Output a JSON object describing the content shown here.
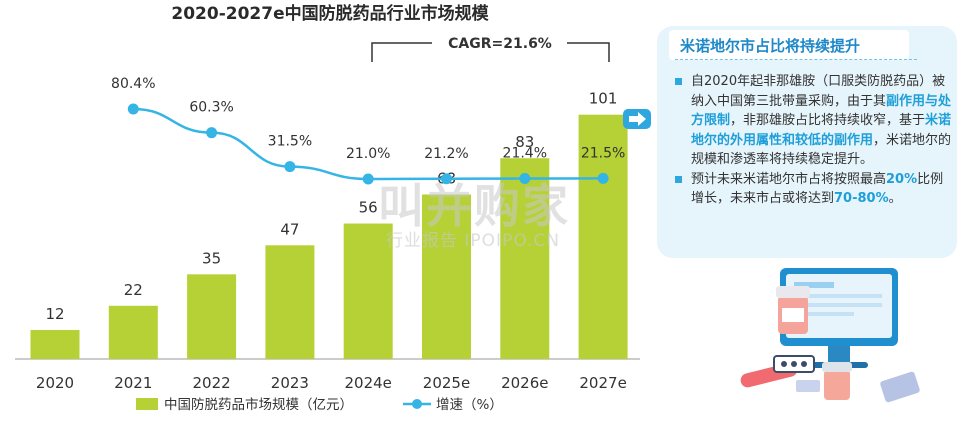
{
  "chart_data": {
    "type": "bar",
    "title": "2020-2027e中国防脱药品行业市场规模",
    "categories": [
      "2020",
      "2021",
      "2022",
      "2023",
      "2024e",
      "2025e",
      "2026e",
      "2027e"
    ],
    "series": [
      {
        "name": "中国防脱药品市场规模（亿元）",
        "type": "bar",
        "values": [
          12,
          22,
          35,
          47,
          56,
          68,
          83,
          101
        ],
        "color": "#b5d136"
      },
      {
        "name": "增速（%）",
        "type": "line",
        "values": [
          null,
          80.4,
          60.3,
          31.5,
          21.0,
          21.2,
          21.4,
          21.5
        ],
        "labels": [
          "",
          "80.4%",
          "60.3%",
          "31.5%",
          "21.0%",
          "21.2%",
          "21.4%",
          "21.5%"
        ],
        "color": "#35b4e6"
      }
    ],
    "annotation": "CAGR=21.6%",
    "legend_position": "bottom",
    "grid": false
  },
  "panel": {
    "title": "米诺地尔市占比将持续提升",
    "bullet1": [
      {
        "t": "自2020年起非那雄胺（口服类防脱药品）被纳入中国第三批带量采购，由于其",
        "hl": false
      },
      {
        "t": "副作用与处方限制",
        "hl": true
      },
      {
        "t": "，非那雄胺占比将持续收窄，基于",
        "hl": false
      },
      {
        "t": "米诺地尔的外用属性和较低的副作用",
        "hl": true
      },
      {
        "t": "，米诺地尔的规模和渗透率将持续稳定提升。",
        "hl": false
      }
    ],
    "bullet2": [
      {
        "t": "预计未来米诺地尔市占将按照最高",
        "hl": false
      },
      {
        "t": "20%",
        "hl": true
      },
      {
        "t": "比例增长，未来市占或将达到",
        "hl": false
      },
      {
        "t": "70-80%",
        "hl": true
      },
      {
        "t": "。",
        "hl": false
      }
    ]
  },
  "watermark": {
    "main": "叫并购家",
    "sub": "行业报告  IPOIPO.CN"
  },
  "colors": {
    "bar": "#b5d136",
    "line": "#35b4e6",
    "accent": "#1e9fd9",
    "panel_bg": "#e6f4fb"
  }
}
